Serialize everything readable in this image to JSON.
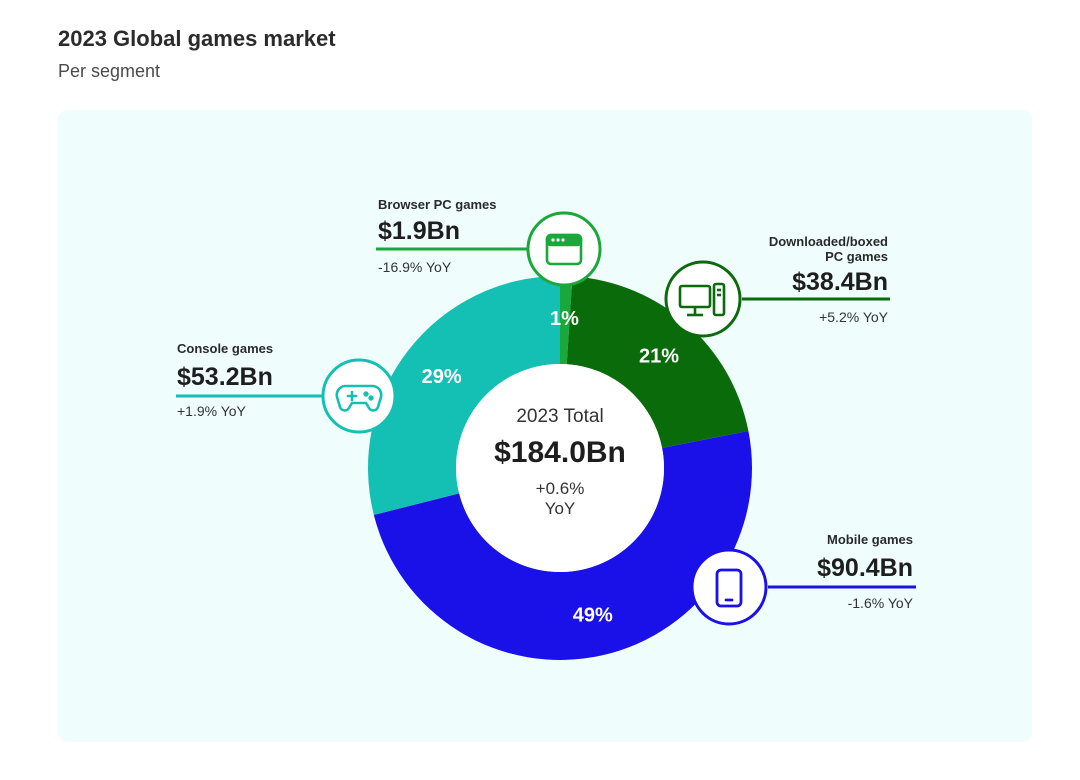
{
  "header": {
    "title": "2023 Global games market",
    "subtitle": "Per segment"
  },
  "colors": {
    "panel_bg": "#effdfd",
    "browser": "#1aa83c",
    "downloaded": "#0a6b0a",
    "mobile": "#1a10e8",
    "console": "#14c0b4"
  },
  "chart_data": {
    "type": "pie",
    "subtype": "donut",
    "center": {
      "label": "2023 Total",
      "value": "$184.0Bn",
      "change_line1": "+0.6%",
      "change_line2": "YoY"
    },
    "segments": [
      {
        "key": "browser",
        "name": "Browser PC games",
        "name_lines": [
          "Browser PC games"
        ],
        "revenue": "$1.9Bn",
        "revenue_bn": 1.9,
        "yoy": "-16.9% YoY",
        "share_label": "1%",
        "color": "#1aa83c",
        "icon": "browser-window-icon"
      },
      {
        "key": "downloaded",
        "name": "Downloaded/boxed PC games",
        "name_lines": [
          "Downloaded/boxed",
          "PC games"
        ],
        "revenue": "$38.4Bn",
        "revenue_bn": 38.4,
        "yoy": "+5.2% YoY",
        "share_label": "21%",
        "color": "#0a6b0a",
        "icon": "desktop-pc-icon"
      },
      {
        "key": "mobile",
        "name": "Mobile games",
        "name_lines": [
          "Mobile games"
        ],
        "revenue": "$90.4Bn",
        "revenue_bn": 90.4,
        "yoy": "-1.6% YoY",
        "share_label": "49%",
        "color": "#1a10e8",
        "icon": "smartphone-icon"
      },
      {
        "key": "console",
        "name": "Console games",
        "name_lines": [
          "Console games"
        ],
        "revenue": "$53.2Bn",
        "revenue_bn": 53.2,
        "yoy": "+1.9% YoY",
        "share_label": "29%",
        "color": "#14c0b4",
        "icon": "gamepad-icon"
      }
    ]
  }
}
